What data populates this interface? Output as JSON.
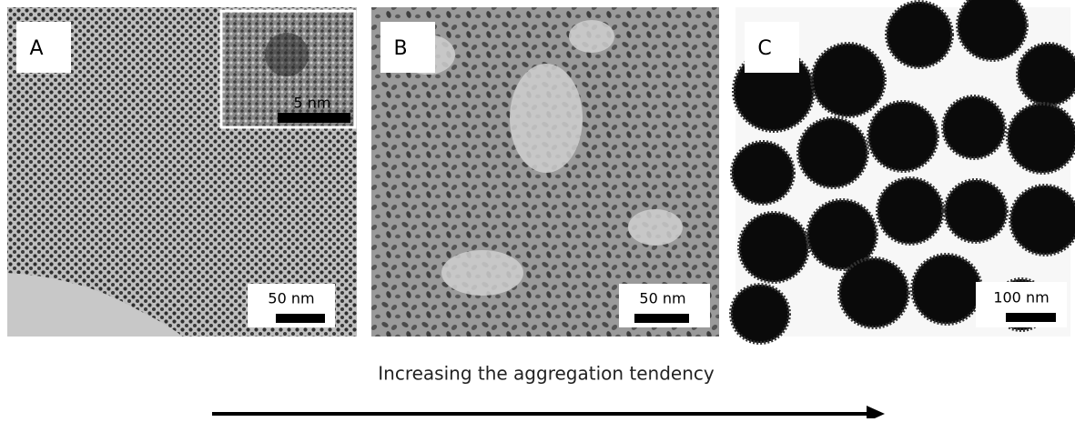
{
  "panels": [
    {
      "label": "A",
      "scale_bar": "50 nm",
      "inset_scale_bar": "5 nm"
    },
    {
      "label": "B",
      "scale_bar": "50 nm"
    },
    {
      "label": "C",
      "scale_bar": "100 nm"
    }
  ],
  "caption": "Increasing the aggregation tendency"
}
